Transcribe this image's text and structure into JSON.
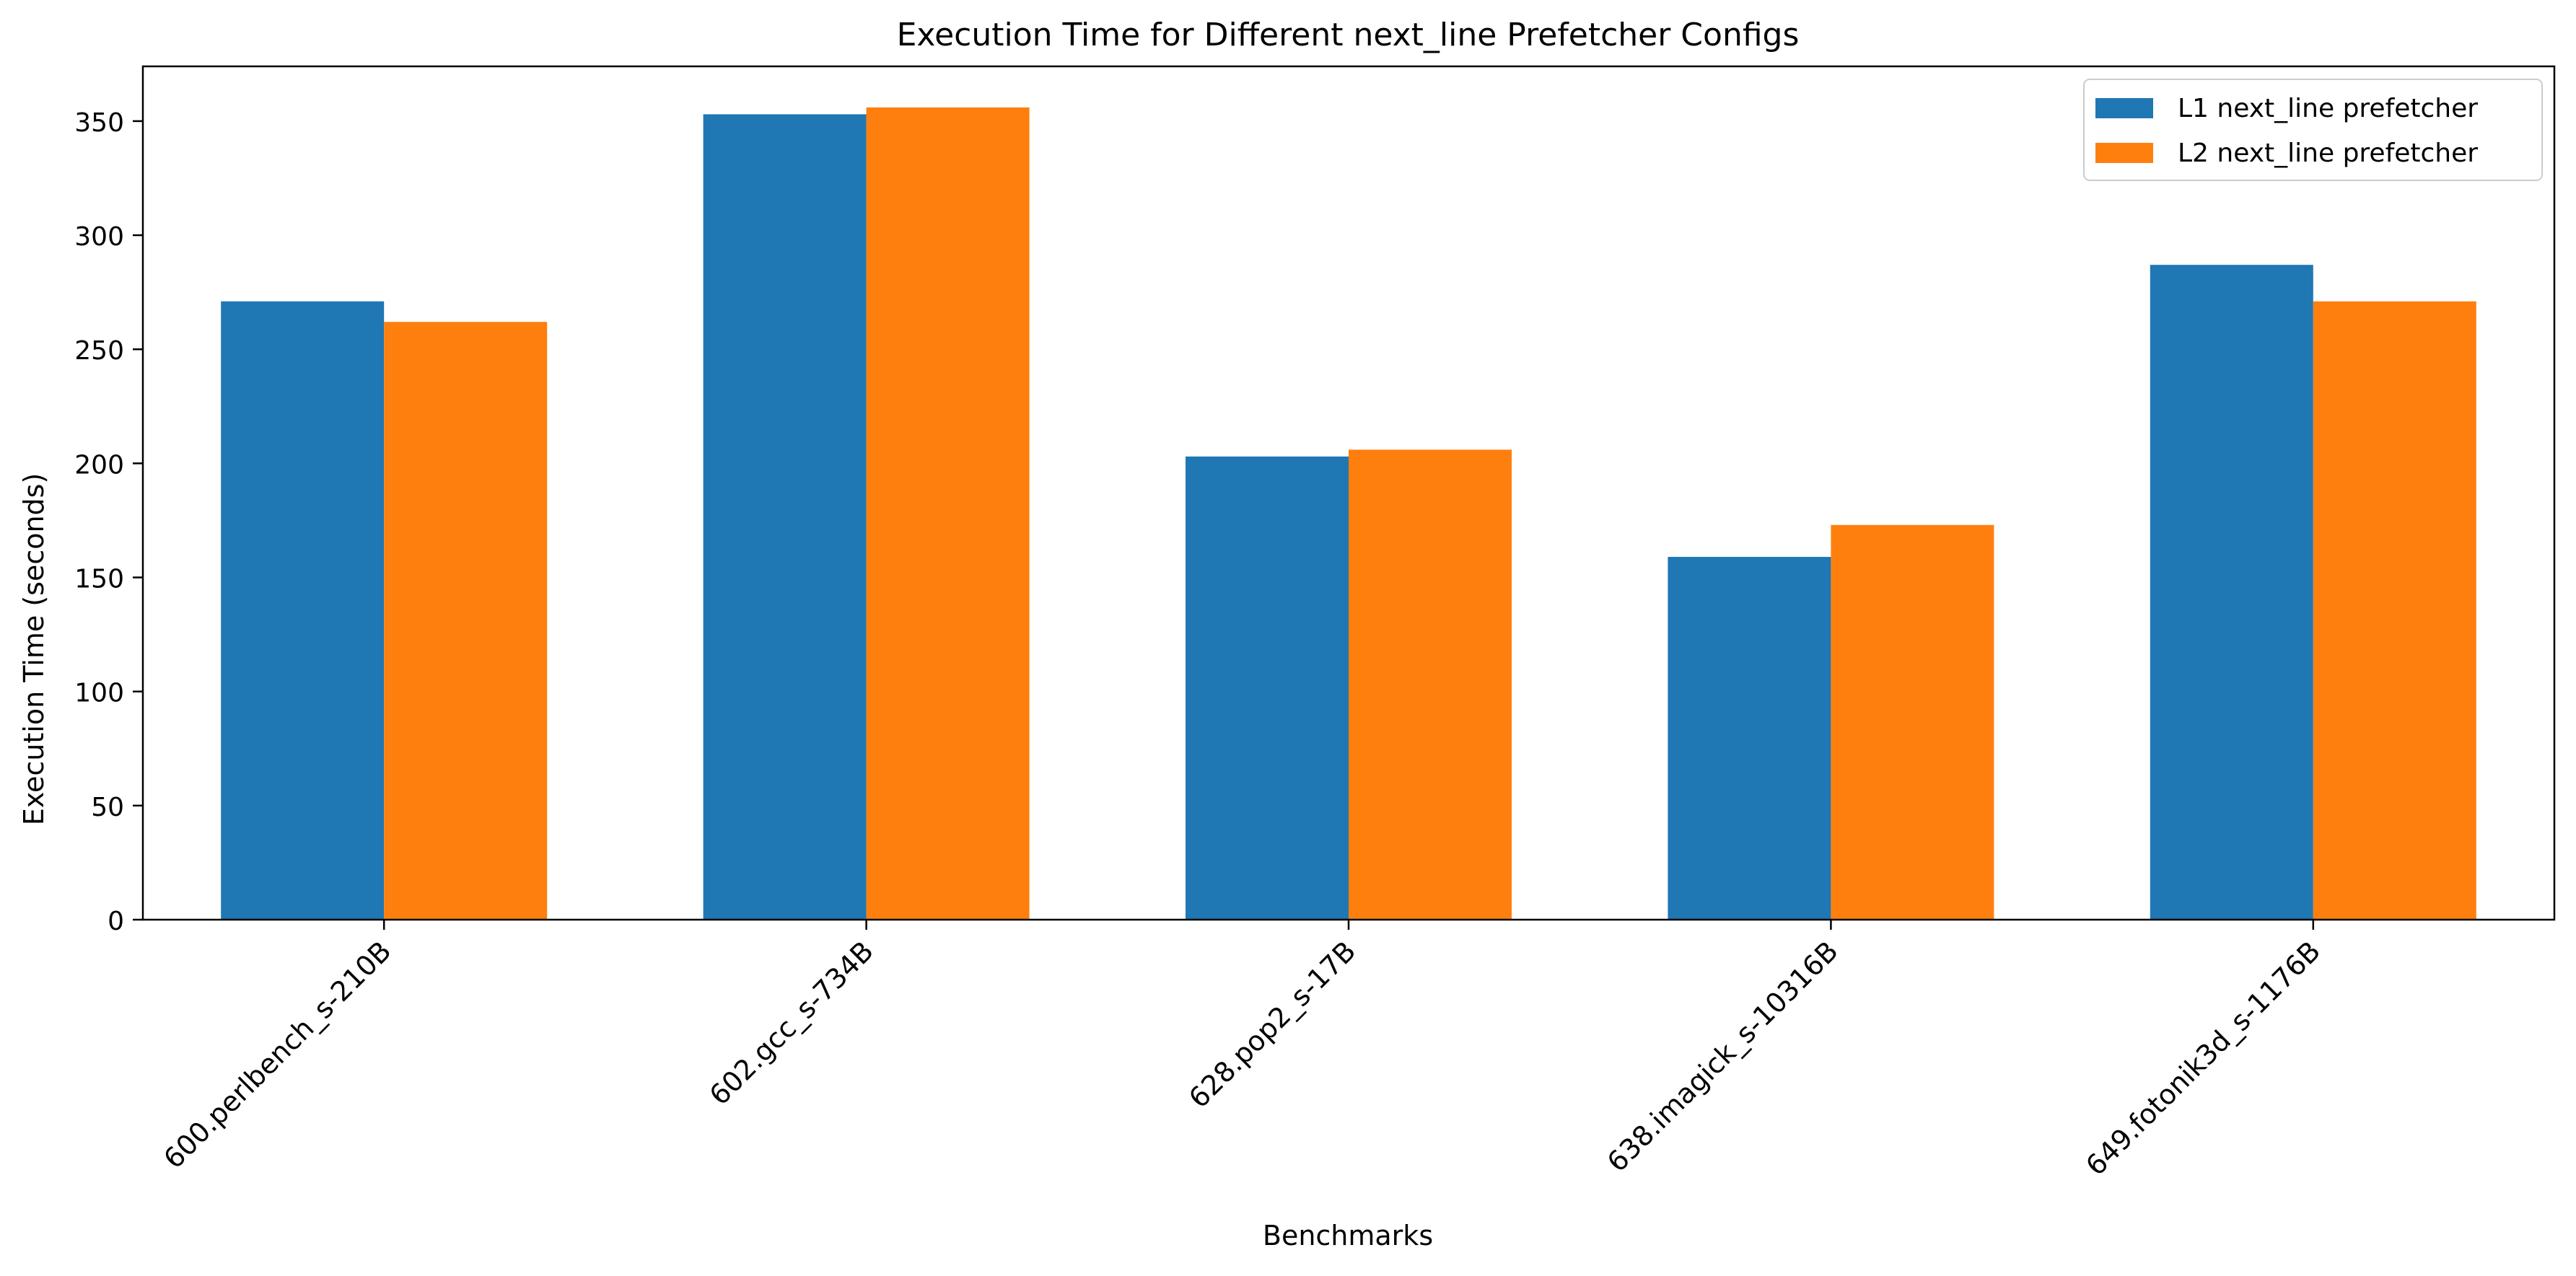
{
  "chart_data": {
    "type": "bar",
    "title": "Execution Time for Different next_line Prefetcher Configs",
    "xlabel": "Benchmarks",
    "ylabel": "Execution Time (seconds)",
    "categories": [
      "600.perlbench_s-210B",
      "602.gcc_s-734B",
      "628.pop2_s-17B",
      "638.imagick_s-10316B",
      "649.fotonik3d_s-1176B"
    ],
    "series": [
      {
        "name": "L1 next_line prefetcher",
        "color": "#1f77b4",
        "values": [
          271,
          353,
          203,
          159,
          287
        ]
      },
      {
        "name": "L2 next_line prefetcher",
        "color": "#ff7f0e",
        "values": [
          262,
          356,
          206,
          173,
          271
        ]
      }
    ],
    "ylim": [
      0,
      374
    ],
    "yticks": [
      0,
      50,
      100,
      150,
      200,
      250,
      300,
      350
    ],
    "legend_position": "top-right",
    "grid": false
  }
}
